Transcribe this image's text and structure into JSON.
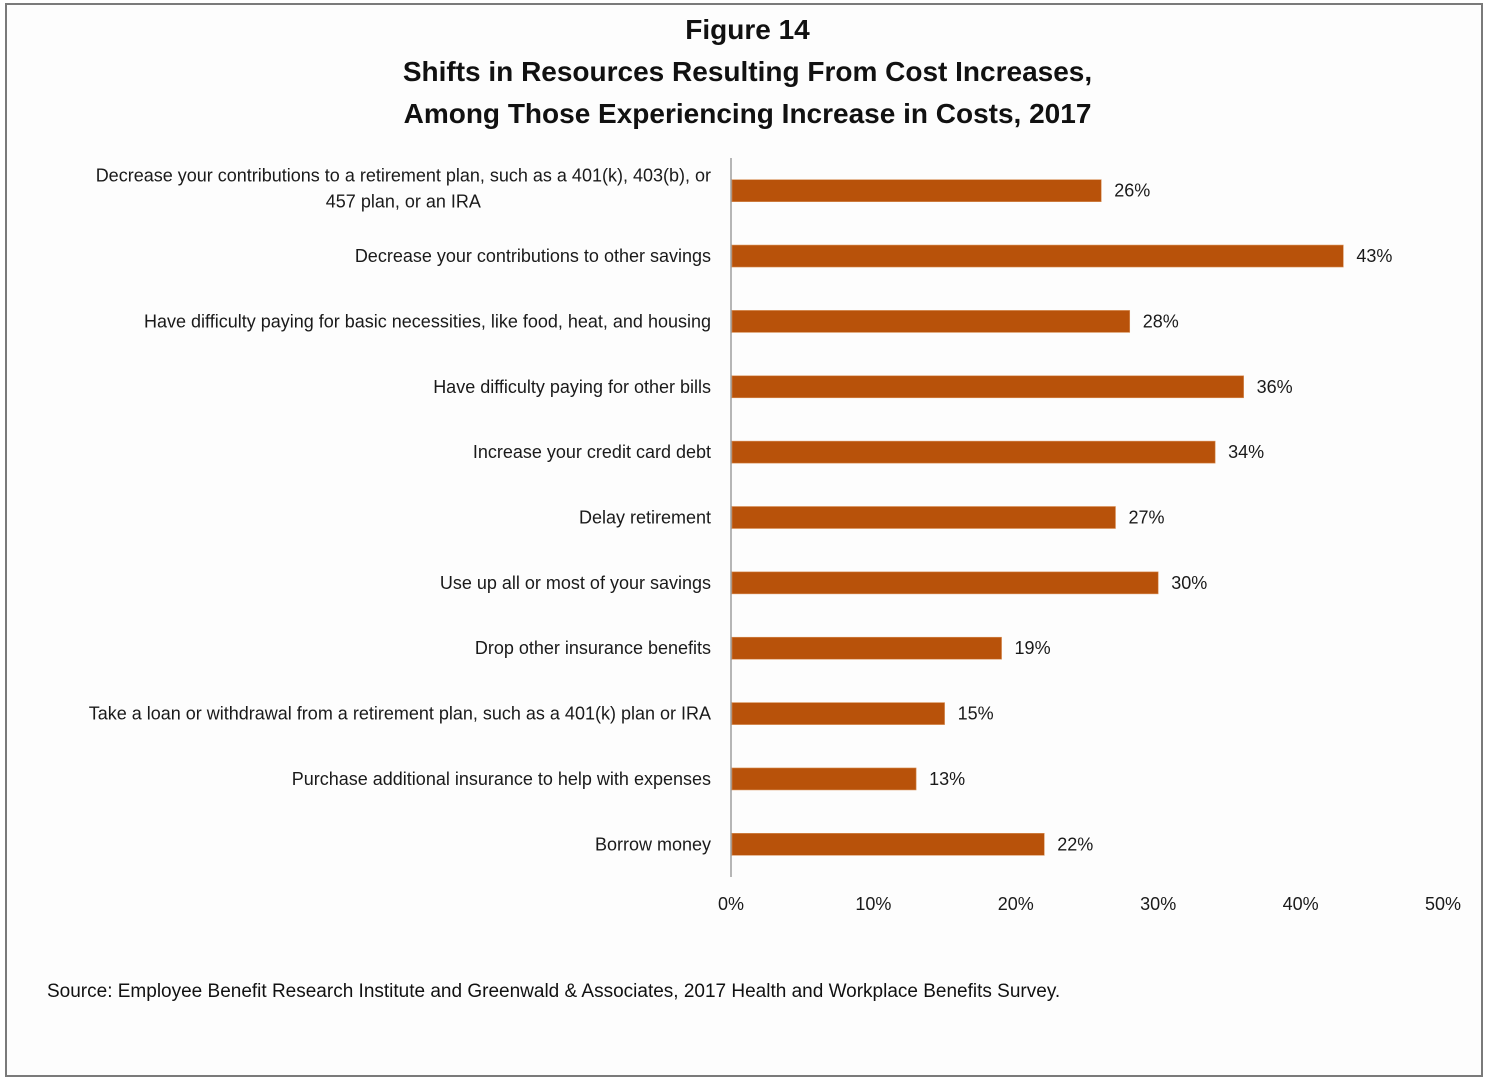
{
  "chart_data": {
    "type": "bar",
    "orientation": "horizontal",
    "title_lines": [
      "Figure 14",
      "Shifts in Resources Resulting From Cost Increases,",
      "Among Those Experiencing Increase in Costs, 2017"
    ],
    "categories": [
      [
        "Decrease your contributions to a retirement plan, such  as a 401(k), 403(b), or",
        "457 plan, or an IRA"
      ],
      [
        "Decrease your contributions to other savings"
      ],
      [
        "Have difficulty paying for basic necessities, like food, heat, and housing"
      ],
      [
        "Have difficulty paying for other bills"
      ],
      [
        "Increase your credit card debt"
      ],
      [
        "Delay retirement"
      ],
      [
        "Use up all or most of your savings"
      ],
      [
        "Drop other insurance benefits"
      ],
      [
        "Take a loan or withdrawal from a retirement plan, such as a 401(k) plan or IRA"
      ],
      [
        "Purchase additional insurance to help with expenses"
      ],
      [
        "Borrow money"
      ]
    ],
    "values": [
      26,
      43,
      28,
      36,
      34,
      27,
      30,
      19,
      15,
      13,
      22
    ],
    "data_labels": [
      "26%",
      "43%",
      "28%",
      "36%",
      "34%",
      "27%",
      "30%",
      "19%",
      "15%",
      "13%",
      "22%"
    ],
    "xlim": [
      0,
      50
    ],
    "xticks": [
      0,
      10,
      20,
      30,
      40,
      50
    ],
    "xtick_labels": [
      "0%",
      "10%",
      "20%",
      "30%",
      "40%",
      "50%"
    ],
    "xlabel": "",
    "ylabel": "",
    "grid": false,
    "legend": "none",
    "bar_color": "#B8520A",
    "source": "Source: Employee Benefit Research Institute and Greenwald & Associates, 2017 Health and Workplace Benefits Survey."
  }
}
